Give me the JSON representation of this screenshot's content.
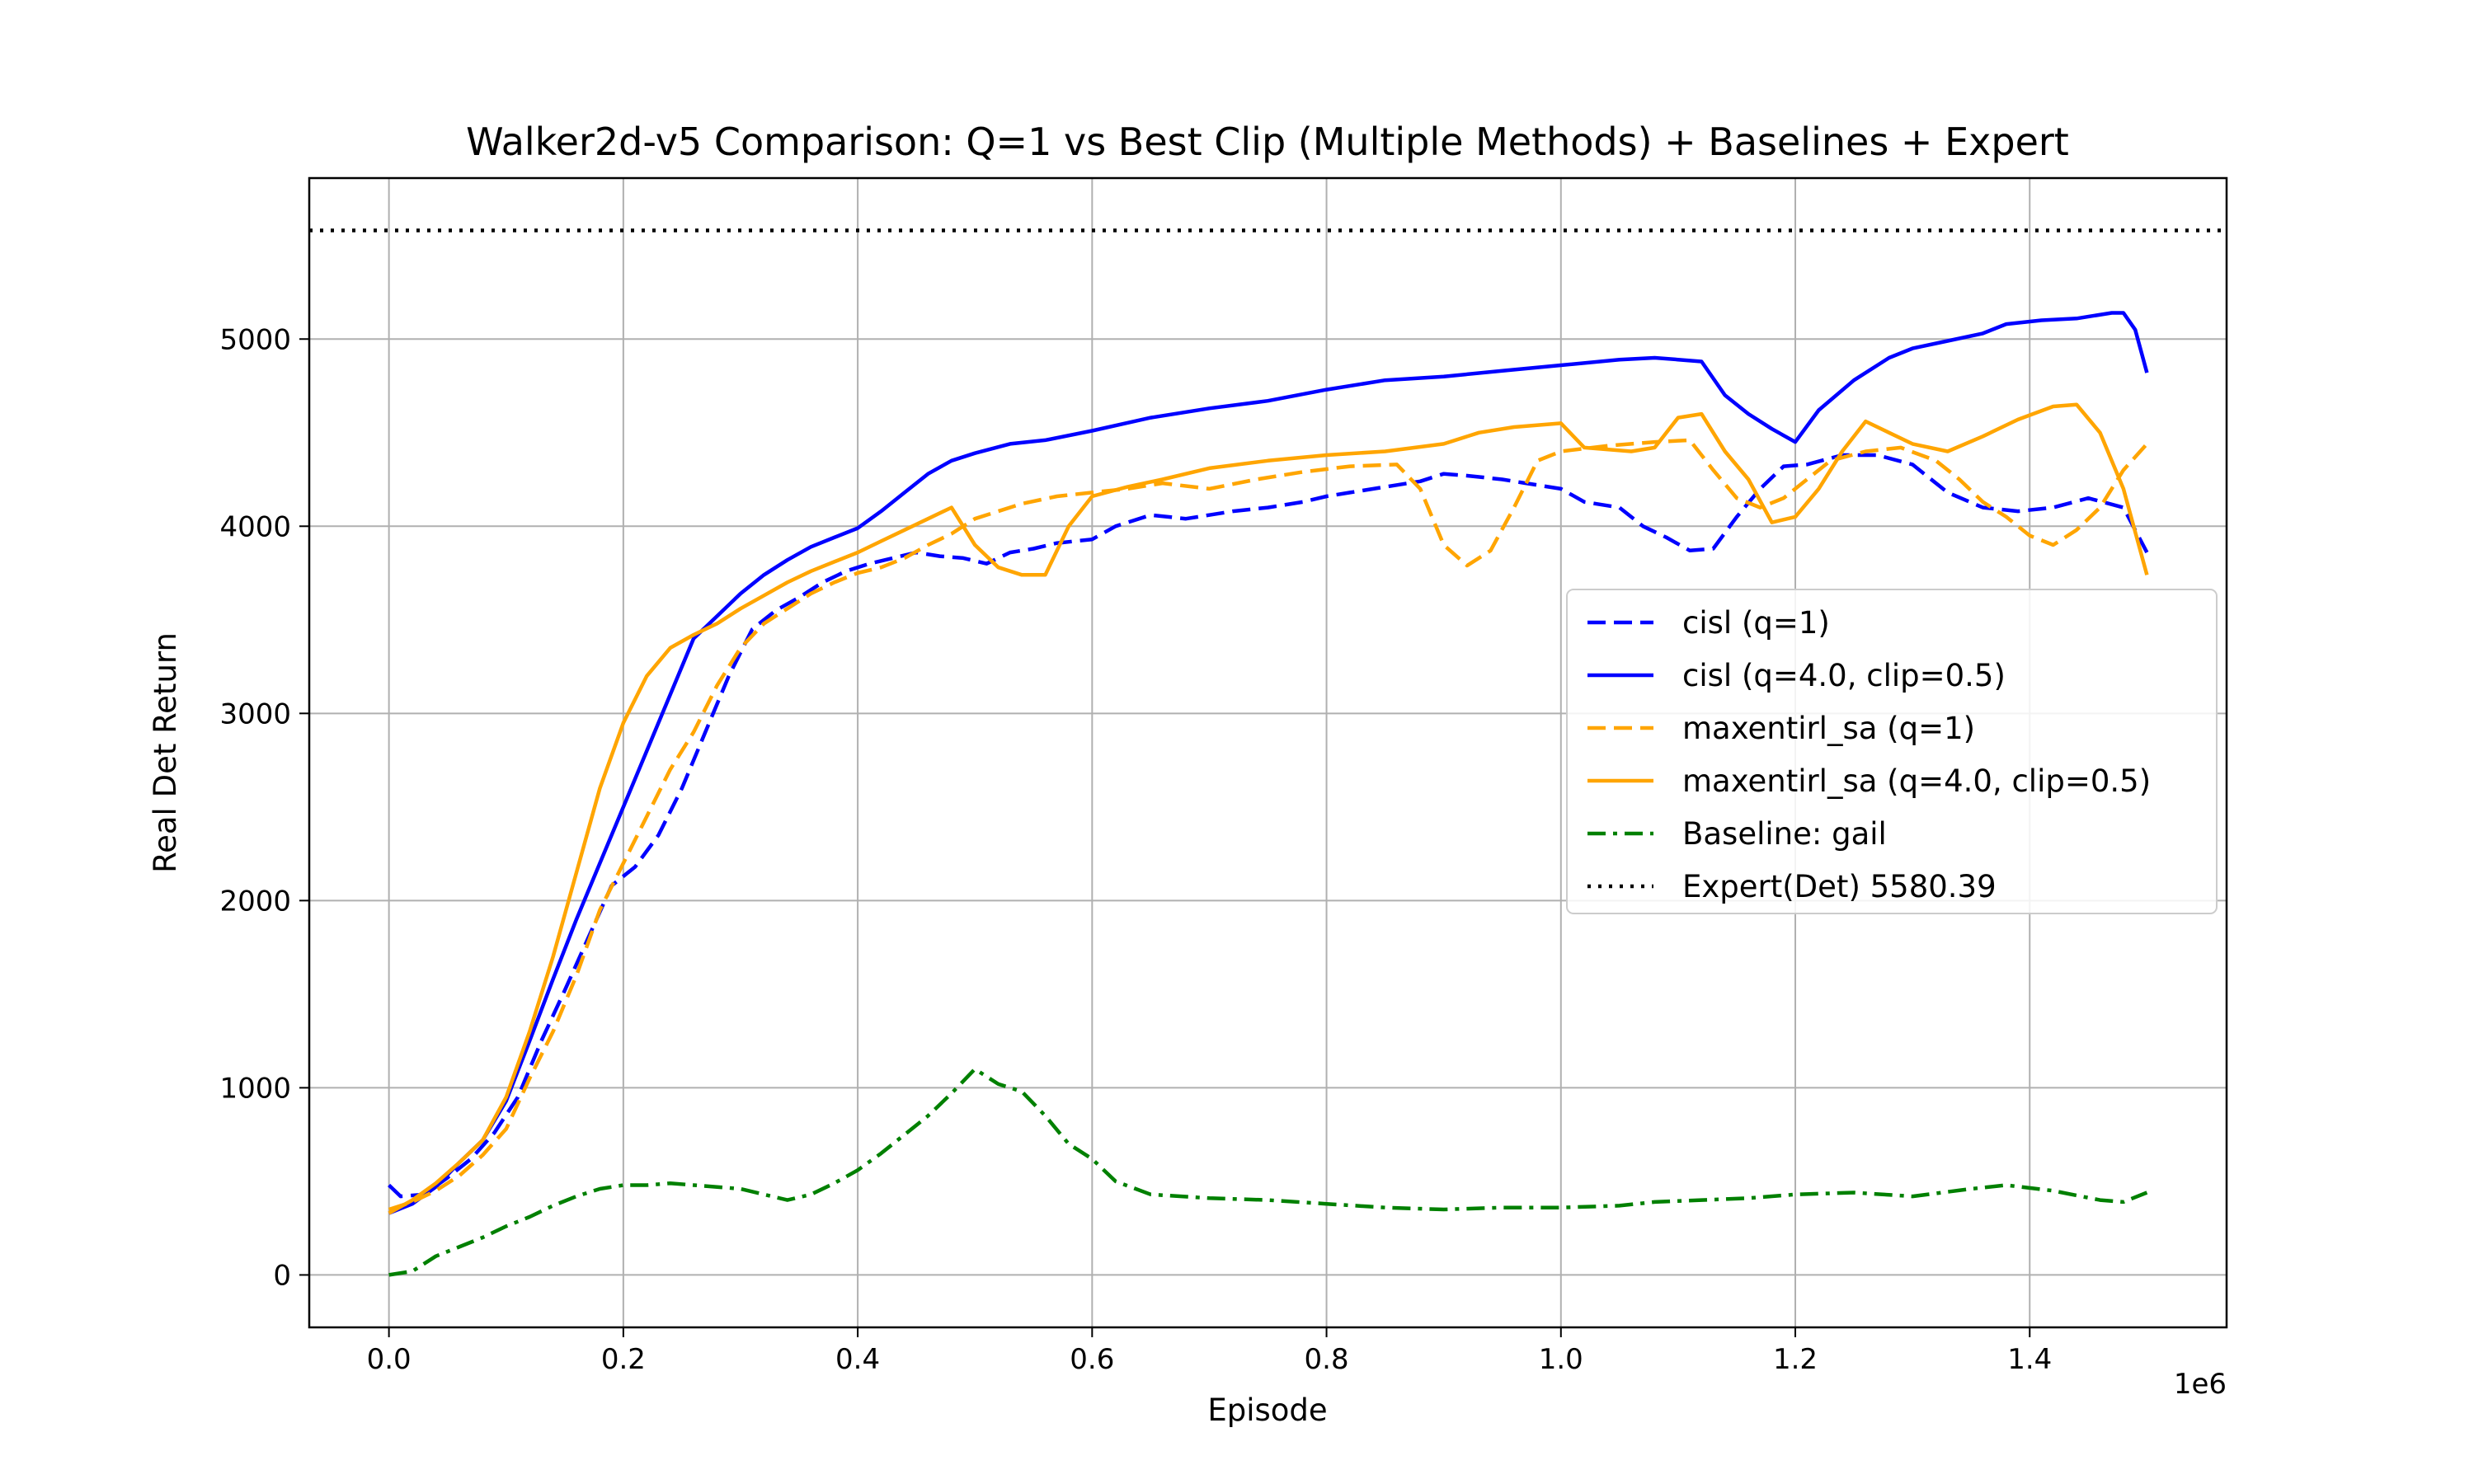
{
  "chart_data": {
    "type": "line",
    "title": "Walker2d-v5 Comparison: Q=1 vs Best Clip (Multiple Methods) + Baselines + Expert",
    "xlabel": "Episode",
    "ylabel": "Real Det Return",
    "x_offset_label": "1e6",
    "xlim": [
      -0.068,
      1.568
    ],
    "ylim": [
      -280,
      5860
    ],
    "xticks": [
      0.0,
      0.2,
      0.4,
      0.6,
      0.8,
      1.0,
      1.2,
      1.4
    ],
    "xtick_labels": [
      "0.0",
      "0.2",
      "0.4",
      "0.6",
      "0.8",
      "1.0",
      "1.2",
      "1.4"
    ],
    "yticks": [
      0,
      1000,
      2000,
      3000,
      4000,
      5000
    ],
    "ytick_labels": [
      "0",
      "1000",
      "2000",
      "3000",
      "4000",
      "5000"
    ],
    "grid": true,
    "legend_position": "center-right",
    "series": [
      {
        "name": "cisl (q=1)",
        "color": "#0000ff",
        "dash": "dashed",
        "points": [
          [
            0,
            480
          ],
          [
            0.01,
            420
          ],
          [
            0.03,
            430
          ],
          [
            0.05,
            520
          ],
          [
            0.07,
            620
          ],
          [
            0.09,
            760
          ],
          [
            0.11,
            950
          ],
          [
            0.13,
            1250
          ],
          [
            0.15,
            1520
          ],
          [
            0.17,
            1800
          ],
          [
            0.19,
            2080
          ],
          [
            0.21,
            2180
          ],
          [
            0.23,
            2350
          ],
          [
            0.25,
            2600
          ],
          [
            0.27,
            2900
          ],
          [
            0.29,
            3200
          ],
          [
            0.31,
            3450
          ],
          [
            0.33,
            3550
          ],
          [
            0.35,
            3620
          ],
          [
            0.37,
            3700
          ],
          [
            0.39,
            3760
          ],
          [
            0.41,
            3800
          ],
          [
            0.43,
            3830
          ],
          [
            0.45,
            3860
          ],
          [
            0.47,
            3840
          ],
          [
            0.49,
            3830
          ],
          [
            0.51,
            3800
          ],
          [
            0.53,
            3860
          ],
          [
            0.55,
            3880
          ],
          [
            0.57,
            3910
          ],
          [
            0.6,
            3930
          ],
          [
            0.62,
            4000
          ],
          [
            0.65,
            4060
          ],
          [
            0.68,
            4040
          ],
          [
            0.7,
            4060
          ],
          [
            0.72,
            4080
          ],
          [
            0.75,
            4100
          ],
          [
            0.78,
            4130
          ],
          [
            0.8,
            4160
          ],
          [
            0.82,
            4180
          ],
          [
            0.85,
            4210
          ],
          [
            0.88,
            4240
          ],
          [
            0.9,
            4280
          ],
          [
            0.92,
            4270
          ],
          [
            0.95,
            4250
          ],
          [
            0.97,
            4230
          ],
          [
            1.0,
            4200
          ],
          [
            1.02,
            4130
          ],
          [
            1.05,
            4100
          ],
          [
            1.07,
            4000
          ],
          [
            1.09,
            3940
          ],
          [
            1.11,
            3870
          ],
          [
            1.13,
            3880
          ],
          [
            1.15,
            4050
          ],
          [
            1.17,
            4200
          ],
          [
            1.19,
            4320
          ],
          [
            1.21,
            4330
          ],
          [
            1.24,
            4380
          ],
          [
            1.27,
            4380
          ],
          [
            1.3,
            4330
          ],
          [
            1.33,
            4180
          ],
          [
            1.36,
            4100
          ],
          [
            1.39,
            4080
          ],
          [
            1.42,
            4100
          ],
          [
            1.45,
            4150
          ],
          [
            1.48,
            4100
          ],
          [
            1.5,
            3860
          ]
        ]
      },
      {
        "name": "cisl (q=4.0, clip=0.5)",
        "color": "#0000ff",
        "dash": "solid",
        "points": [
          [
            0,
            330
          ],
          [
            0.02,
            380
          ],
          [
            0.04,
            470
          ],
          [
            0.06,
            600
          ],
          [
            0.08,
            720
          ],
          [
            0.1,
            930
          ],
          [
            0.12,
            1250
          ],
          [
            0.14,
            1580
          ],
          [
            0.16,
            1900
          ],
          [
            0.18,
            2200
          ],
          [
            0.2,
            2500
          ],
          [
            0.22,
            2800
          ],
          [
            0.24,
            3100
          ],
          [
            0.26,
            3400
          ],
          [
            0.28,
            3520
          ],
          [
            0.3,
            3640
          ],
          [
            0.32,
            3740
          ],
          [
            0.34,
            3820
          ],
          [
            0.36,
            3890
          ],
          [
            0.38,
            3940
          ],
          [
            0.4,
            3990
          ],
          [
            0.42,
            4080
          ],
          [
            0.44,
            4180
          ],
          [
            0.46,
            4280
          ],
          [
            0.48,
            4350
          ],
          [
            0.5,
            4390
          ],
          [
            0.53,
            4440
          ],
          [
            0.56,
            4460
          ],
          [
            0.6,
            4510
          ],
          [
            0.65,
            4580
          ],
          [
            0.7,
            4630
          ],
          [
            0.75,
            4670
          ],
          [
            0.8,
            4730
          ],
          [
            0.85,
            4780
          ],
          [
            0.9,
            4800
          ],
          [
            0.95,
            4830
          ],
          [
            1.0,
            4860
          ],
          [
            1.05,
            4890
          ],
          [
            1.08,
            4900
          ],
          [
            1.1,
            4890
          ],
          [
            1.12,
            4880
          ],
          [
            1.14,
            4700
          ],
          [
            1.16,
            4600
          ],
          [
            1.18,
            4520
          ],
          [
            1.2,
            4450
          ],
          [
            1.22,
            4620
          ],
          [
            1.25,
            4780
          ],
          [
            1.28,
            4900
          ],
          [
            1.3,
            4950
          ],
          [
            1.33,
            4990
          ],
          [
            1.36,
            5030
          ],
          [
            1.38,
            5080
          ],
          [
            1.41,
            5100
          ],
          [
            1.44,
            5110
          ],
          [
            1.47,
            5140
          ],
          [
            1.48,
            5140
          ],
          [
            1.49,
            5050
          ],
          [
            1.5,
            4820
          ]
        ]
      },
      {
        "name": "maxentirl_sa (q=1)",
        "color": "#ffa500",
        "dash": "dashed",
        "points": [
          [
            0,
            350
          ],
          [
            0.02,
            390
          ],
          [
            0.04,
            450
          ],
          [
            0.06,
            530
          ],
          [
            0.08,
            640
          ],
          [
            0.1,
            780
          ],
          [
            0.12,
            1050
          ],
          [
            0.14,
            1300
          ],
          [
            0.16,
            1600
          ],
          [
            0.18,
            1950
          ],
          [
            0.2,
            2200
          ],
          [
            0.22,
            2450
          ],
          [
            0.24,
            2700
          ],
          [
            0.26,
            2900
          ],
          [
            0.28,
            3150
          ],
          [
            0.3,
            3350
          ],
          [
            0.32,
            3480
          ],
          [
            0.34,
            3560
          ],
          [
            0.36,
            3640
          ],
          [
            0.38,
            3700
          ],
          [
            0.4,
            3750
          ],
          [
            0.42,
            3780
          ],
          [
            0.44,
            3830
          ],
          [
            0.46,
            3900
          ],
          [
            0.48,
            3960
          ],
          [
            0.5,
            4040
          ],
          [
            0.52,
            4080
          ],
          [
            0.54,
            4120
          ],
          [
            0.57,
            4160
          ],
          [
            0.6,
            4180
          ],
          [
            0.63,
            4200
          ],
          [
            0.66,
            4230
          ],
          [
            0.7,
            4200
          ],
          [
            0.74,
            4250
          ],
          [
            0.78,
            4290
          ],
          [
            0.82,
            4320
          ],
          [
            0.86,
            4330
          ],
          [
            0.88,
            4200
          ],
          [
            0.9,
            3900
          ],
          [
            0.92,
            3790
          ],
          [
            0.94,
            3870
          ],
          [
            0.96,
            4100
          ],
          [
            0.98,
            4350
          ],
          [
            1.0,
            4400
          ],
          [
            1.04,
            4430
          ],
          [
            1.08,
            4450
          ],
          [
            1.11,
            4460
          ],
          [
            1.13,
            4300
          ],
          [
            1.15,
            4150
          ],
          [
            1.17,
            4100
          ],
          [
            1.19,
            4150
          ],
          [
            1.21,
            4250
          ],
          [
            1.23,
            4350
          ],
          [
            1.26,
            4400
          ],
          [
            1.29,
            4420
          ],
          [
            1.32,
            4350
          ],
          [
            1.34,
            4250
          ],
          [
            1.36,
            4130
          ],
          [
            1.38,
            4050
          ],
          [
            1.4,
            3950
          ],
          [
            1.42,
            3900
          ],
          [
            1.44,
            3980
          ],
          [
            1.46,
            4100
          ],
          [
            1.48,
            4300
          ],
          [
            1.5,
            4440
          ]
        ]
      },
      {
        "name": "maxentirl_sa (q=4.0, clip=0.5)",
        "color": "#ffa500",
        "dash": "solid",
        "points": [
          [
            0,
            330
          ],
          [
            0.02,
            400
          ],
          [
            0.04,
            490
          ],
          [
            0.06,
            600
          ],
          [
            0.08,
            720
          ],
          [
            0.1,
            950
          ],
          [
            0.12,
            1300
          ],
          [
            0.14,
            1700
          ],
          [
            0.16,
            2150
          ],
          [
            0.18,
            2600
          ],
          [
            0.2,
            2950
          ],
          [
            0.22,
            3200
          ],
          [
            0.24,
            3350
          ],
          [
            0.26,
            3420
          ],
          [
            0.28,
            3480
          ],
          [
            0.3,
            3560
          ],
          [
            0.32,
            3630
          ],
          [
            0.34,
            3700
          ],
          [
            0.36,
            3760
          ],
          [
            0.38,
            3810
          ],
          [
            0.4,
            3860
          ],
          [
            0.42,
            3920
          ],
          [
            0.44,
            3980
          ],
          [
            0.46,
            4040
          ],
          [
            0.48,
            4100
          ],
          [
            0.5,
            3900
          ],
          [
            0.52,
            3780
          ],
          [
            0.54,
            3740
          ],
          [
            0.56,
            3740
          ],
          [
            0.58,
            4000
          ],
          [
            0.6,
            4160
          ],
          [
            0.63,
            4210
          ],
          [
            0.66,
            4250
          ],
          [
            0.7,
            4310
          ],
          [
            0.75,
            4350
          ],
          [
            0.8,
            4380
          ],
          [
            0.85,
            4400
          ],
          [
            0.9,
            4440
          ],
          [
            0.93,
            4500
          ],
          [
            0.96,
            4530
          ],
          [
            1.0,
            4550
          ],
          [
            1.02,
            4420
          ],
          [
            1.06,
            4400
          ],
          [
            1.08,
            4420
          ],
          [
            1.1,
            4580
          ],
          [
            1.12,
            4600
          ],
          [
            1.14,
            4400
          ],
          [
            1.16,
            4250
          ],
          [
            1.18,
            4020
          ],
          [
            1.2,
            4050
          ],
          [
            1.22,
            4200
          ],
          [
            1.24,
            4400
          ],
          [
            1.26,
            4560
          ],
          [
            1.28,
            4500
          ],
          [
            1.3,
            4440
          ],
          [
            1.33,
            4400
          ],
          [
            1.36,
            4480
          ],
          [
            1.39,
            4570
          ],
          [
            1.42,
            4640
          ],
          [
            1.44,
            4650
          ],
          [
            1.46,
            4500
          ],
          [
            1.48,
            4200
          ],
          [
            1.5,
            3740
          ]
        ]
      },
      {
        "name": "Baseline: gail",
        "color": "#008000",
        "dash": "dashdot",
        "points": [
          [
            0,
            0
          ],
          [
            0.02,
            20
          ],
          [
            0.04,
            100
          ],
          [
            0.06,
            150
          ],
          [
            0.08,
            200
          ],
          [
            0.1,
            260
          ],
          [
            0.12,
            310
          ],
          [
            0.14,
            370
          ],
          [
            0.16,
            420
          ],
          [
            0.18,
            460
          ],
          [
            0.2,
            480
          ],
          [
            0.22,
            480
          ],
          [
            0.24,
            490
          ],
          [
            0.26,
            480
          ],
          [
            0.28,
            470
          ],
          [
            0.3,
            460
          ],
          [
            0.32,
            430
          ],
          [
            0.34,
            400
          ],
          [
            0.36,
            430
          ],
          [
            0.38,
            490
          ],
          [
            0.4,
            560
          ],
          [
            0.42,
            650
          ],
          [
            0.44,
            750
          ],
          [
            0.46,
            850
          ],
          [
            0.48,
            970
          ],
          [
            0.5,
            1100
          ],
          [
            0.52,
            1020
          ],
          [
            0.54,
            980
          ],
          [
            0.56,
            850
          ],
          [
            0.58,
            700
          ],
          [
            0.6,
            620
          ],
          [
            0.62,
            500
          ],
          [
            0.65,
            430
          ],
          [
            0.7,
            410
          ],
          [
            0.75,
            400
          ],
          [
            0.8,
            380
          ],
          [
            0.85,
            360
          ],
          [
            0.9,
            350
          ],
          [
            0.95,
            360
          ],
          [
            1.0,
            360
          ],
          [
            1.05,
            370
          ],
          [
            1.08,
            390
          ],
          [
            1.12,
            400
          ],
          [
            1.16,
            410
          ],
          [
            1.2,
            430
          ],
          [
            1.25,
            440
          ],
          [
            1.3,
            420
          ],
          [
            1.35,
            460
          ],
          [
            1.38,
            480
          ],
          [
            1.42,
            450
          ],
          [
            1.46,
            400
          ],
          [
            1.48,
            390
          ],
          [
            1.5,
            440
          ]
        ]
      },
      {
        "name": "Expert(Det) 5580.39",
        "color": "#000000",
        "dash": "dotted",
        "horizontal": true,
        "value": 5580.39
      }
    ]
  }
}
